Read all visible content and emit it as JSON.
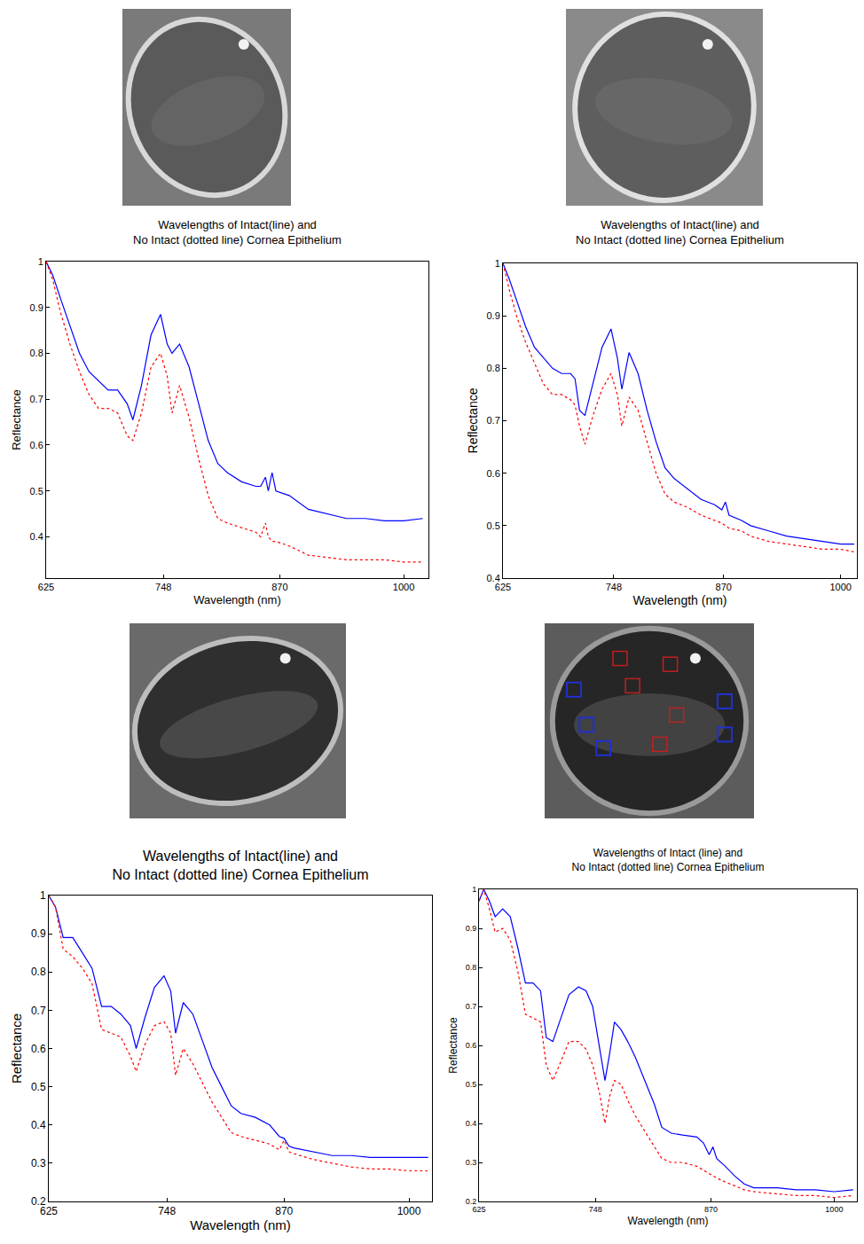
{
  "chart_data": [
    {
      "type": "line",
      "title": "Wavelengths of Intact(line) and\nNo Intact (dotted line) Cornea Epithelium",
      "x_label": "Wavelength (nm)",
      "y_label": "Reflectance",
      "x": [
        625,
        632,
        640,
        650,
        660,
        670,
        680,
        690,
        700,
        710,
        716,
        725,
        735,
        745,
        752,
        757,
        765,
        775,
        785,
        795,
        805,
        815,
        830,
        845,
        850,
        855,
        858,
        862,
        866,
        880,
        900,
        920,
        940,
        960,
        980,
        1000,
        1020
      ],
      "series": [
        {
          "color": "#0000ff",
          "line_style": "solid",
          "values": [
            1.0,
            0.97,
            0.92,
            0.86,
            0.8,
            0.76,
            0.74,
            0.72,
            0.72,
            0.69,
            0.655,
            0.73,
            0.84,
            0.885,
            0.82,
            0.8,
            0.82,
            0.77,
            0.69,
            0.61,
            0.56,
            0.54,
            0.52,
            0.51,
            0.51,
            0.53,
            0.5,
            0.54,
            0.5,
            0.49,
            0.46,
            0.45,
            0.44,
            0.44,
            0.435,
            0.435,
            0.44
          ]
        },
        {
          "color": "#ff0000",
          "line_style": "dotted",
          "values": [
            1.0,
            0.96,
            0.89,
            0.82,
            0.76,
            0.71,
            0.68,
            0.68,
            0.67,
            0.62,
            0.61,
            0.67,
            0.77,
            0.8,
            0.75,
            0.67,
            0.73,
            0.66,
            0.57,
            0.49,
            0.44,
            0.43,
            0.42,
            0.41,
            0.4,
            0.43,
            0.4,
            0.39,
            0.39,
            0.38,
            0.36,
            0.355,
            0.35,
            0.35,
            0.35,
            0.345,
            0.345
          ]
        }
      ],
      "xlim": [
        625,
        1026
      ],
      "ylim": [
        0.31,
        1
      ],
      "xticks": [
        625,
        748,
        870,
        1000
      ],
      "yticks": [
        0.4,
        0.5,
        0.6,
        0.7,
        0.8,
        0.9,
        1
      ],
      "grid": false
    },
    {
      "type": "line",
      "title": "Wavelengths of Intact(line) and\nNo Intact (dotted line) Cornea Epithelium",
      "x_label": "Wavelength (nm)",
      "y_label": "Reflectance",
      "x": [
        625,
        632,
        640,
        650,
        660,
        670,
        680,
        690,
        700,
        705,
        710,
        716,
        725,
        735,
        745,
        752,
        757,
        765,
        775,
        785,
        795,
        805,
        815,
        830,
        845,
        860,
        868,
        872,
        876,
        890,
        900,
        920,
        940,
        960,
        980,
        1000,
        1015
      ],
      "series": [
        {
          "color": "#0000ff",
          "line_style": "solid",
          "values": [
            1.0,
            0.97,
            0.93,
            0.88,
            0.84,
            0.82,
            0.8,
            0.79,
            0.79,
            0.78,
            0.72,
            0.71,
            0.77,
            0.84,
            0.875,
            0.82,
            0.76,
            0.83,
            0.79,
            0.72,
            0.66,
            0.61,
            0.59,
            0.57,
            0.55,
            0.54,
            0.53,
            0.545,
            0.52,
            0.51,
            0.5,
            0.49,
            0.48,
            0.475,
            0.47,
            0.465,
            0.465
          ]
        },
        {
          "color": "#ff0000",
          "line_style": "dotted",
          "values": [
            1.0,
            0.95,
            0.9,
            0.85,
            0.81,
            0.77,
            0.75,
            0.75,
            0.74,
            0.73,
            0.69,
            0.655,
            0.71,
            0.76,
            0.79,
            0.75,
            0.69,
            0.745,
            0.72,
            0.66,
            0.6,
            0.56,
            0.545,
            0.535,
            0.52,
            0.51,
            0.505,
            0.5,
            0.495,
            0.49,
            0.48,
            0.47,
            0.465,
            0.46,
            0.455,
            0.455,
            0.45
          ]
        }
      ],
      "xlim": [
        625,
        1018
      ],
      "ylim": [
        0.4,
        1
      ],
      "xticks": [
        625,
        748,
        870,
        1000
      ],
      "yticks": [
        0.4,
        0.5,
        0.6,
        0.7,
        0.8,
        0.9,
        1
      ],
      "grid": false
    },
    {
      "type": "line",
      "title": "Wavelengths of Intact(line) and\nNo Intact (dotted line) Cornea Epithelium",
      "x_label": "Wavelength (nm)",
      "y_label": "Reflectance",
      "x": [
        625,
        632,
        640,
        650,
        660,
        670,
        680,
        690,
        700,
        710,
        716,
        725,
        735,
        745,
        752,
        757,
        765,
        775,
        785,
        795,
        805,
        815,
        825,
        840,
        855,
        865,
        870,
        875,
        880,
        900,
        920,
        940,
        960,
        980,
        1000,
        1020
      ],
      "series": [
        {
          "color": "#0000ff",
          "line_style": "solid",
          "values": [
            1.0,
            0.97,
            0.89,
            0.89,
            0.85,
            0.81,
            0.71,
            0.71,
            0.69,
            0.66,
            0.6,
            0.68,
            0.76,
            0.79,
            0.75,
            0.64,
            0.72,
            0.69,
            0.62,
            0.55,
            0.5,
            0.45,
            0.43,
            0.42,
            0.4,
            0.37,
            0.365,
            0.345,
            0.34,
            0.33,
            0.32,
            0.32,
            0.315,
            0.315,
            0.315,
            0.315
          ]
        },
        {
          "color": "#ff0000",
          "line_style": "dotted",
          "values": [
            1.0,
            0.97,
            0.86,
            0.84,
            0.81,
            0.77,
            0.65,
            0.64,
            0.63,
            0.58,
            0.54,
            0.61,
            0.66,
            0.67,
            0.64,
            0.53,
            0.6,
            0.56,
            0.51,
            0.46,
            0.42,
            0.38,
            0.37,
            0.36,
            0.35,
            0.335,
            0.36,
            0.33,
            0.325,
            0.31,
            0.3,
            0.29,
            0.285,
            0.285,
            0.28,
            0.28
          ]
        }
      ],
      "xlim": [
        625,
        1024
      ],
      "ylim": [
        0.2,
        1
      ],
      "xticks": [
        625,
        748,
        870,
        1000
      ],
      "yticks": [
        0.2,
        0.3,
        0.4,
        0.5,
        0.6,
        0.7,
        0.8,
        0.9,
        1
      ],
      "grid": false
    },
    {
      "type": "line",
      "title": "Wavelengths of Intact (line) and\nNo Intact (dotted line) Cornea Epithelium",
      "x_label": "Wavelength (nm)",
      "y_label": "Reflectance",
      "x": [
        625,
        630,
        636,
        642,
        650,
        658,
        666,
        674,
        682,
        690,
        696,
        703,
        710,
        720,
        730,
        738,
        745,
        752,
        758,
        763,
        768,
        775,
        782,
        790,
        800,
        810,
        818,
        828,
        840,
        855,
        862,
        868,
        872,
        876,
        885,
        895,
        905,
        915,
        940,
        960,
        980,
        1000,
        1020
      ],
      "series": [
        {
          "color": "#0000ff",
          "line_style": "solid",
          "values": [
            0.97,
            1.0,
            0.97,
            0.93,
            0.95,
            0.93,
            0.85,
            0.76,
            0.76,
            0.74,
            0.62,
            0.61,
            0.66,
            0.73,
            0.75,
            0.74,
            0.7,
            0.6,
            0.51,
            0.58,
            0.66,
            0.64,
            0.61,
            0.57,
            0.51,
            0.45,
            0.39,
            0.375,
            0.37,
            0.365,
            0.35,
            0.32,
            0.34,
            0.31,
            0.29,
            0.265,
            0.245,
            0.235,
            0.235,
            0.23,
            0.23,
            0.225,
            0.23
          ]
        },
        {
          "color": "#ff0000",
          "line_style": "dotted",
          "values": [
            0.97,
            1.0,
            0.95,
            0.89,
            0.9,
            0.87,
            0.79,
            0.68,
            0.67,
            0.66,
            0.55,
            0.51,
            0.55,
            0.61,
            0.61,
            0.59,
            0.55,
            0.48,
            0.4,
            0.47,
            0.51,
            0.5,
            0.46,
            0.42,
            0.38,
            0.34,
            0.31,
            0.3,
            0.3,
            0.29,
            0.28,
            0.27,
            0.265,
            0.26,
            0.25,
            0.24,
            0.23,
            0.225,
            0.22,
            0.215,
            0.215,
            0.21,
            0.215
          ]
        }
      ],
      "xlim": [
        625,
        1024
      ],
      "ylim": [
        0.2,
        1
      ],
      "xticks": [
        625,
        748,
        870,
        1000
      ],
      "yticks": [
        0.2,
        0.3,
        0.4,
        0.5,
        0.6,
        0.7,
        0.8,
        0.9,
        1
      ],
      "grid": false
    }
  ]
}
